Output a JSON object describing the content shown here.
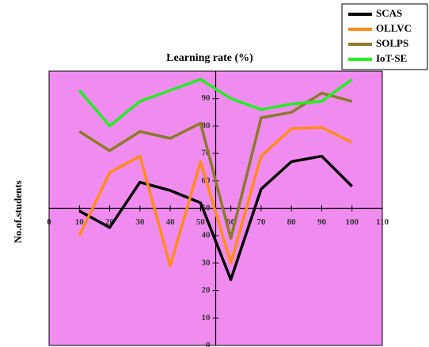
{
  "chart_data": {
    "type": "line",
    "title": "Learning rate (%)",
    "y_label": "No.of.students",
    "x": [
      10,
      20,
      30,
      40,
      50,
      60,
      70,
      80,
      90,
      100
    ],
    "series": [
      {
        "name": "SCAS",
        "color": "#000000",
        "values": [
          49,
          43,
          59.5,
          56.5,
          52,
          24,
          57,
          67,
          69,
          58
        ]
      },
      {
        "name": "OLLVC",
        "color": "#ff8c1a",
        "values": [
          40,
          63,
          69,
          29,
          67,
          30,
          69,
          79,
          79.5,
          74
        ]
      },
      {
        "name": "SOLPS",
        "color": "#8b7a28",
        "values": [
          78,
          71,
          78,
          75.5,
          81,
          39,
          83,
          85,
          92,
          89
        ]
      },
      {
        "name": "IoT-SE",
        "color": "#22ee22",
        "values": [
          93,
          80,
          89,
          93,
          97,
          90,
          86,
          88,
          89,
          97
        ]
      }
    ],
    "xlim": [
      0,
      110
    ],
    "ylim": [
      0,
      100
    ],
    "xticks": [
      0,
      10,
      20,
      30,
      40,
      50,
      60,
      70,
      80,
      90,
      100,
      110
    ],
    "yticks": [
      0,
      10,
      20,
      30,
      40,
      50,
      60,
      70,
      80,
      90
    ],
    "x_axis_at": 50,
    "y_axis_at": 55,
    "background": "#f08cf0",
    "legend": "top-right"
  }
}
